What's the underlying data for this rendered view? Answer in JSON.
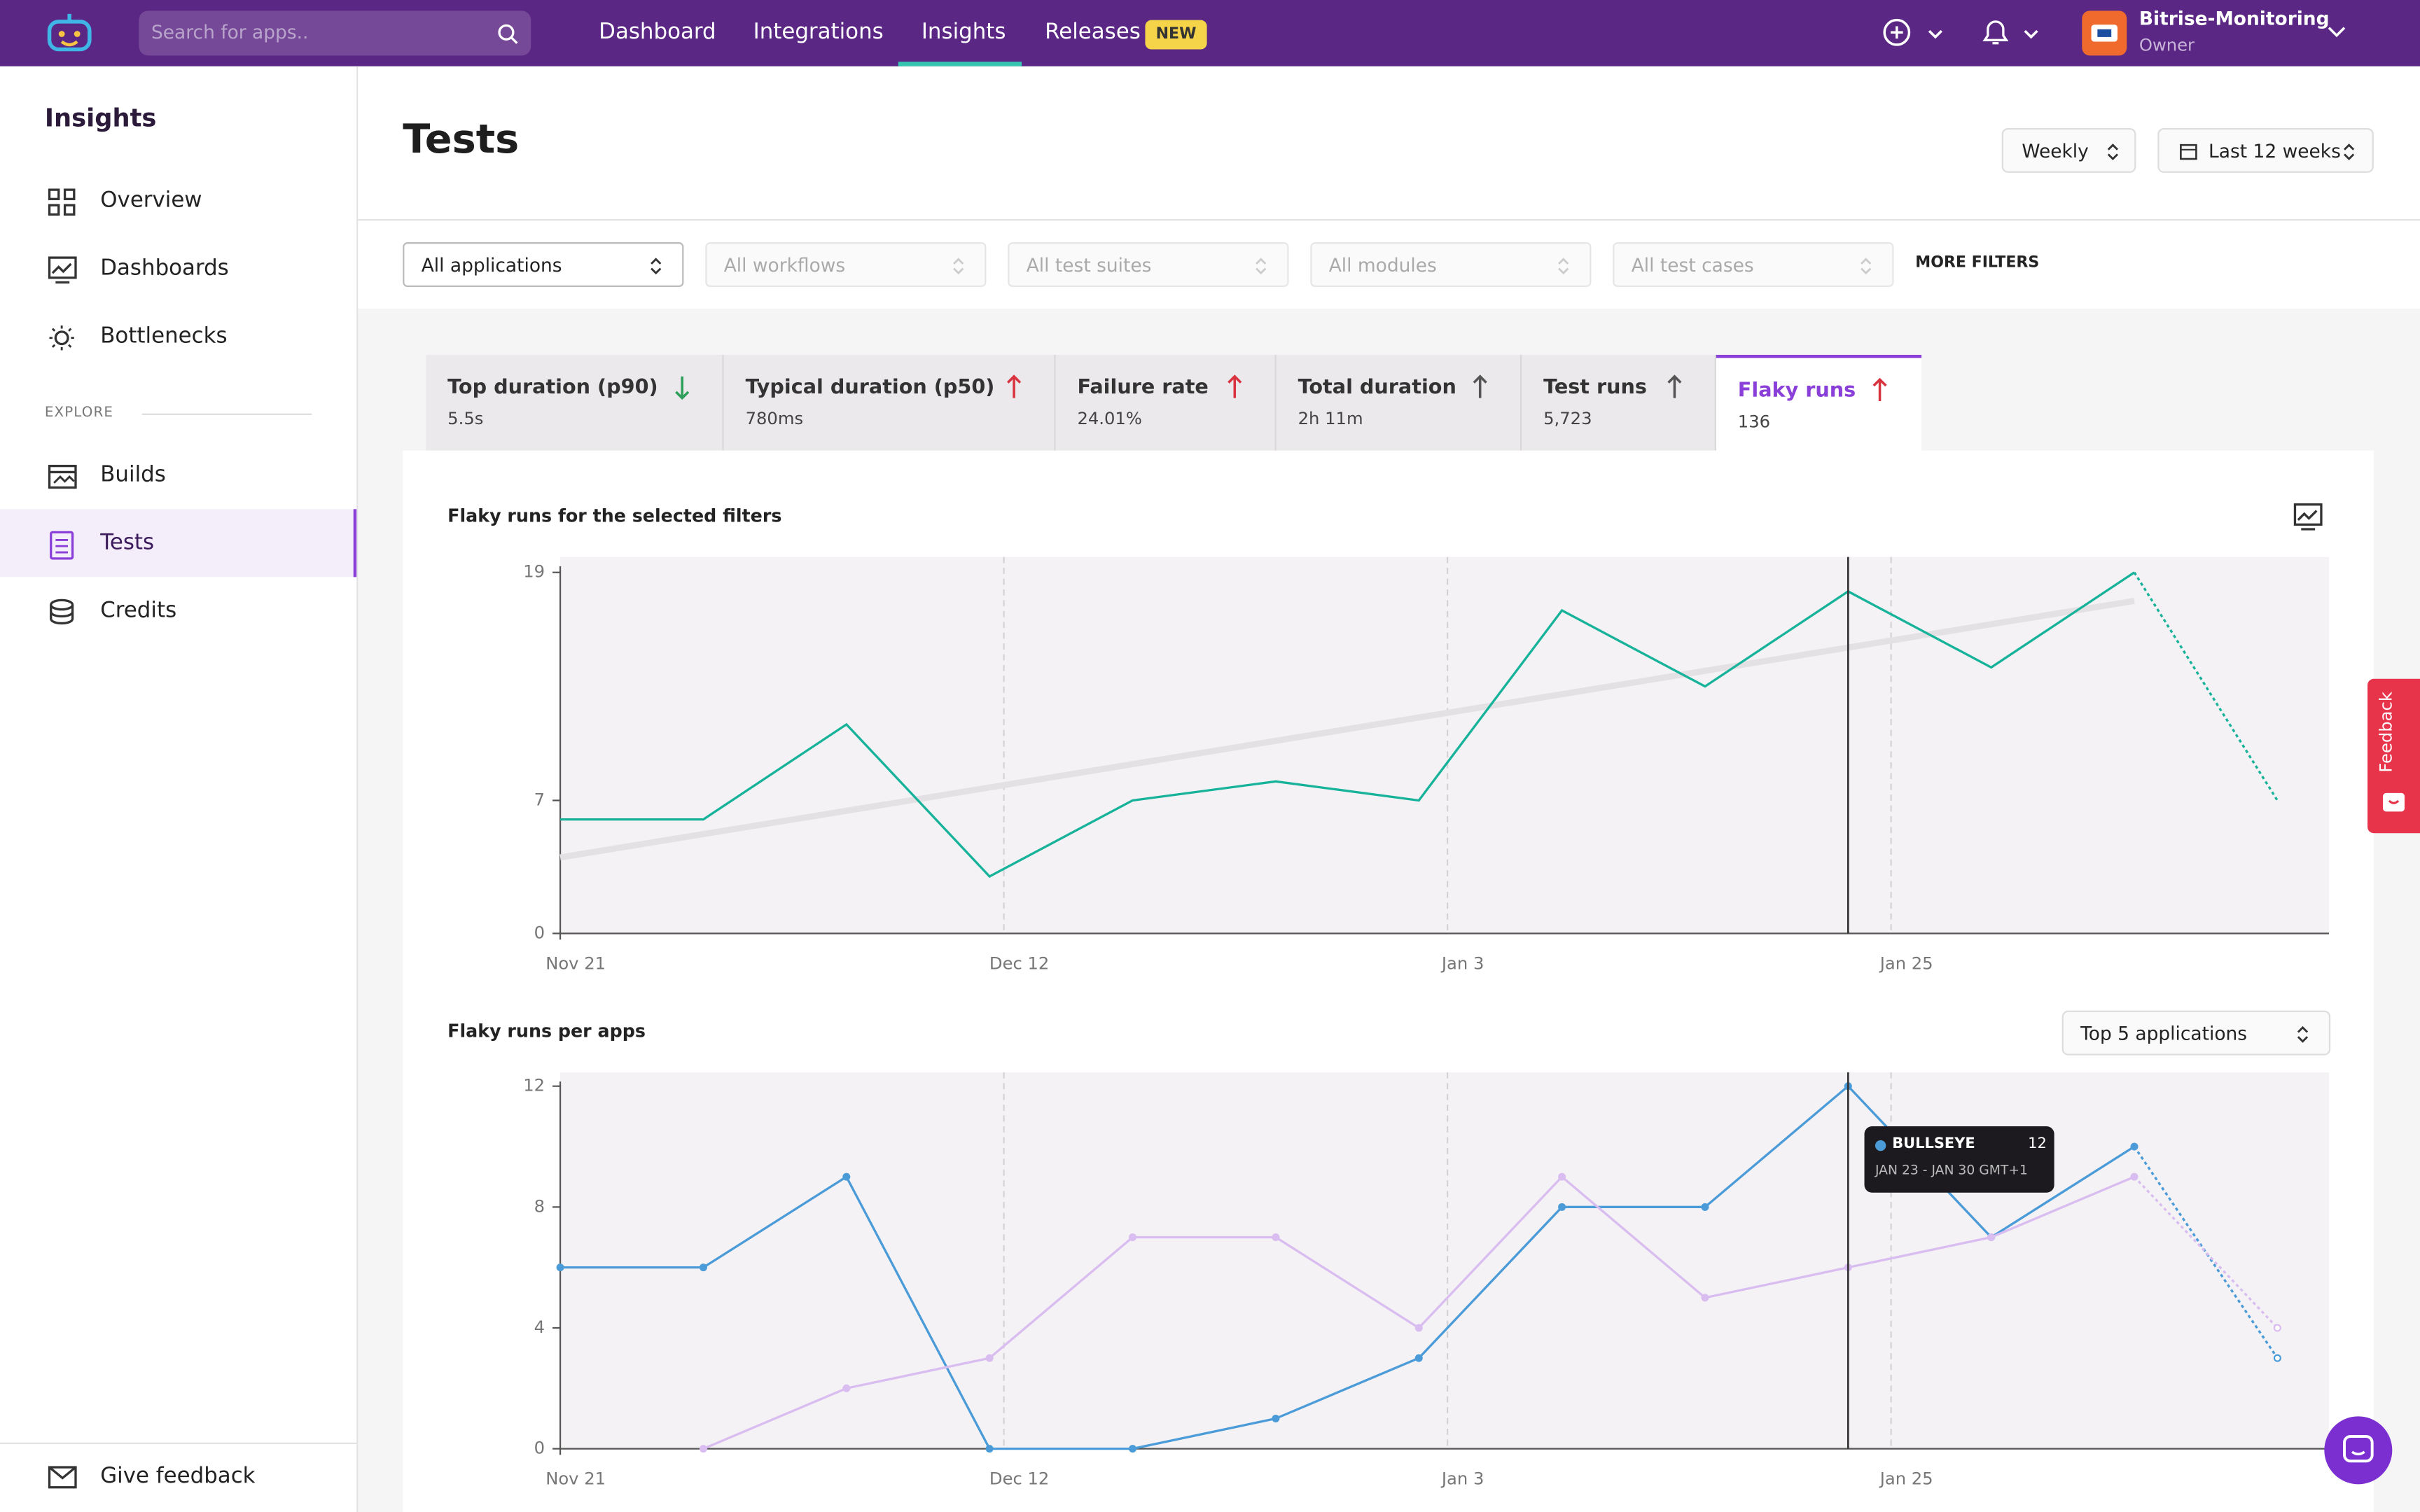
{
  "nav": {
    "search_placeholder": "Search for apps..",
    "links": [
      "Dashboard",
      "Integrations",
      "Insights",
      "Releases"
    ],
    "active_link": 2,
    "badge": "NEW",
    "account": "Bitrise-Monitoring",
    "role": "Owner"
  },
  "sidebar": {
    "title": "Insights",
    "items": [
      "Overview",
      "Dashboards",
      "Bottlenecks"
    ],
    "section": "EXPLORE",
    "explore": [
      "Builds",
      "Tests",
      "Credits"
    ],
    "active_explore": 1,
    "footer": "Give feedback"
  },
  "header": {
    "title": "Tests",
    "period": "Weekly",
    "range": "Last 12 weeks"
  },
  "filters": [
    "All applications",
    "All workflows",
    "All test suites",
    "All modules",
    "All test cases"
  ],
  "more_filters": "MORE FILTERS",
  "metrics": [
    {
      "label": "Top duration (p90)",
      "value": "5.5s",
      "trend": "down",
      "color": "#2e9e5b"
    },
    {
      "label": "Typical duration (p50)",
      "value": "780ms",
      "trend": "up",
      "color": "#d9333f"
    },
    {
      "label": "Failure rate",
      "value": "24.01%",
      "trend": "up",
      "color": "#d9333f"
    },
    {
      "label": "Total duration",
      "value": "2h 11m",
      "trend": "up",
      "color": "#555555"
    },
    {
      "label": "Test runs",
      "value": "5,723",
      "trend": "up",
      "color": "#555555"
    },
    {
      "label": "Flaky runs",
      "value": "136",
      "trend": "up",
      "color": "#d9333f"
    }
  ],
  "active_metric": 5,
  "feedback": "Feedback",
  "charts": [
    {
      "type": "line",
      "title": "Flaky runs for the selected filters",
      "x": [
        0,
        1,
        2,
        3,
        4,
        5,
        6,
        7,
        8,
        9,
        10,
        11,
        12
      ],
      "xlim": [
        0,
        12.36
      ],
      "xticks": [
        {
          "value": 0,
          "label": "Nov 21"
        },
        {
          "value": 3.1,
          "label": "Dec 12"
        },
        {
          "value": 6.2,
          "label": "Jan 3"
        },
        {
          "value": 9.3,
          "label": "Jan 25"
        }
      ],
      "ylim": [
        0,
        19
      ],
      "yticks": [
        0,
        7,
        19
      ],
      "forecast_from": 11,
      "cursor_x": 9,
      "markers": false,
      "trend": {
        "color": "#e4e1e4",
        "x": [
          0,
          11
        ],
        "values": [
          4,
          17.5
        ]
      },
      "series": [
        {
          "color": "#17b29a",
          "values": [
            6,
            6,
            11,
            3,
            7,
            8,
            7,
            17,
            13,
            18,
            14,
            19,
            7
          ]
        }
      ]
    },
    {
      "type": "line",
      "title": "Flaky runs per apps",
      "selector": "Top 5 applications",
      "x": [
        0,
        1,
        2,
        3,
        4,
        5,
        6,
        7,
        8,
        9,
        10,
        11,
        12
      ],
      "xlim": [
        0,
        12.36
      ],
      "xticks": [
        {
          "value": 0,
          "label": "Nov 21"
        },
        {
          "value": 3.1,
          "label": "Dec 12"
        },
        {
          "value": 6.2,
          "label": "Jan 3"
        },
        {
          "value": 9.3,
          "label": "Jan 25"
        }
      ],
      "ylim": [
        0,
        12
      ],
      "yticks": [
        0,
        4,
        8,
        12
      ],
      "forecast_from": 11,
      "cursor_x": 9,
      "markers": true,
      "series": [
        {
          "name": "BULLSEYE",
          "color": "#4a9bd8",
          "values": [
            6,
            6,
            9,
            0,
            0,
            1,
            3,
            8,
            8,
            12,
            7,
            10,
            3
          ]
        },
        {
          "color": "#d9bdf0",
          "values": [
            null,
            0,
            2,
            3,
            7,
            7,
            4,
            9,
            5,
            6,
            7,
            9,
            4
          ]
        }
      ],
      "tooltip": {
        "series": 0,
        "index": 9,
        "label": "JAN 23 - JAN 30 GMT+1"
      }
    }
  ]
}
